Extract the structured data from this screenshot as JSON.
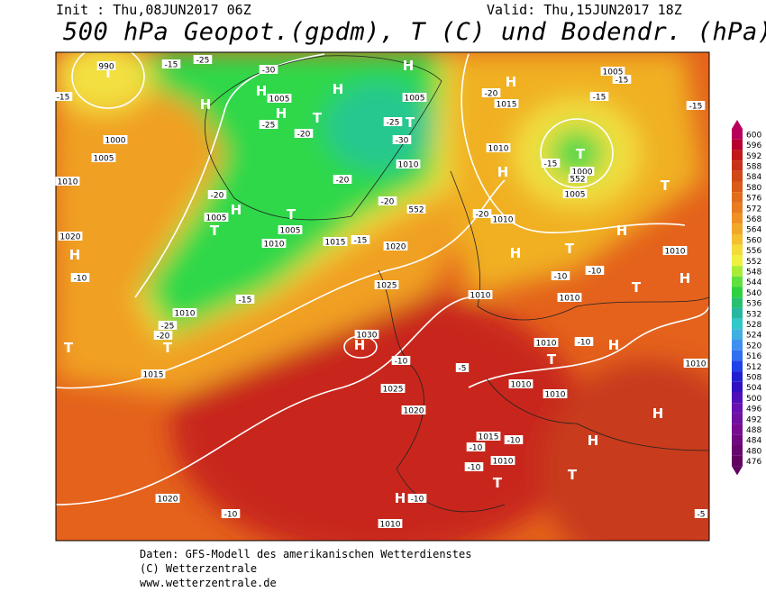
{
  "header": {
    "init": "Init : Thu,08JUN2017 06Z",
    "valid": "Valid: Thu,15JUN2017 18Z",
    "title": "500 hPa Geopot.(gpdm), T (C) und Bodendr. (hPa)"
  },
  "legend": {
    "values": [
      600,
      596,
      592,
      588,
      584,
      580,
      576,
      572,
      568,
      564,
      560,
      556,
      552,
      548,
      544,
      540,
      536,
      532,
      528,
      524,
      520,
      516,
      512,
      508,
      504,
      500,
      496,
      492,
      488,
      484,
      480,
      476
    ]
  },
  "map": {
    "labels": [
      "T",
      "H",
      "H",
      "H",
      "H",
      "H",
      "T",
      "H",
      "T",
      "H",
      "T",
      "H",
      "T",
      "T",
      "H",
      "T",
      "H",
      "T",
      "H",
      "T",
      "H",
      "T",
      "H",
      "H",
      "T",
      "H",
      "H",
      "T",
      "T",
      "T",
      "H",
      "1005",
      "1015",
      "1010",
      "1005",
      "1010",
      "1010",
      "1010",
      "1010",
      "1010",
      "1010",
      "1015",
      "1010",
      "1010",
      "1020",
      "1020",
      "1025",
      "1030",
      "1025",
      "1020",
      "1015",
      "1010",
      "1005",
      "1005",
      "1010",
      "1015",
      "1020",
      "1010",
      "1005",
      "1000",
      "1005",
      "1005",
      "1010",
      "1000",
      "1010",
      "1010",
      "990",
      "552",
      "552",
      "-15",
      "-25",
      "-30",
      "-25",
      "-20",
      "-30",
      "-25",
      "-20",
      "-15",
      "-15",
      "-15",
      "-15",
      "-15",
      "-20",
      "-20",
      "-20",
      "-20",
      "-15",
      "-10",
      "-15",
      "-25",
      "-20",
      "-10",
      "-10",
      "-10",
      "-10",
      "-5",
      "-10",
      "-10",
      "-10",
      "-10",
      "-10",
      "-5"
    ]
  },
  "footer": {
    "lines": [
      "Daten: GFS-Modell des amerikanischen Wetterdienstes",
      "(C) Wetterzentrale",
      "www.wetterzentrale.de"
    ]
  }
}
